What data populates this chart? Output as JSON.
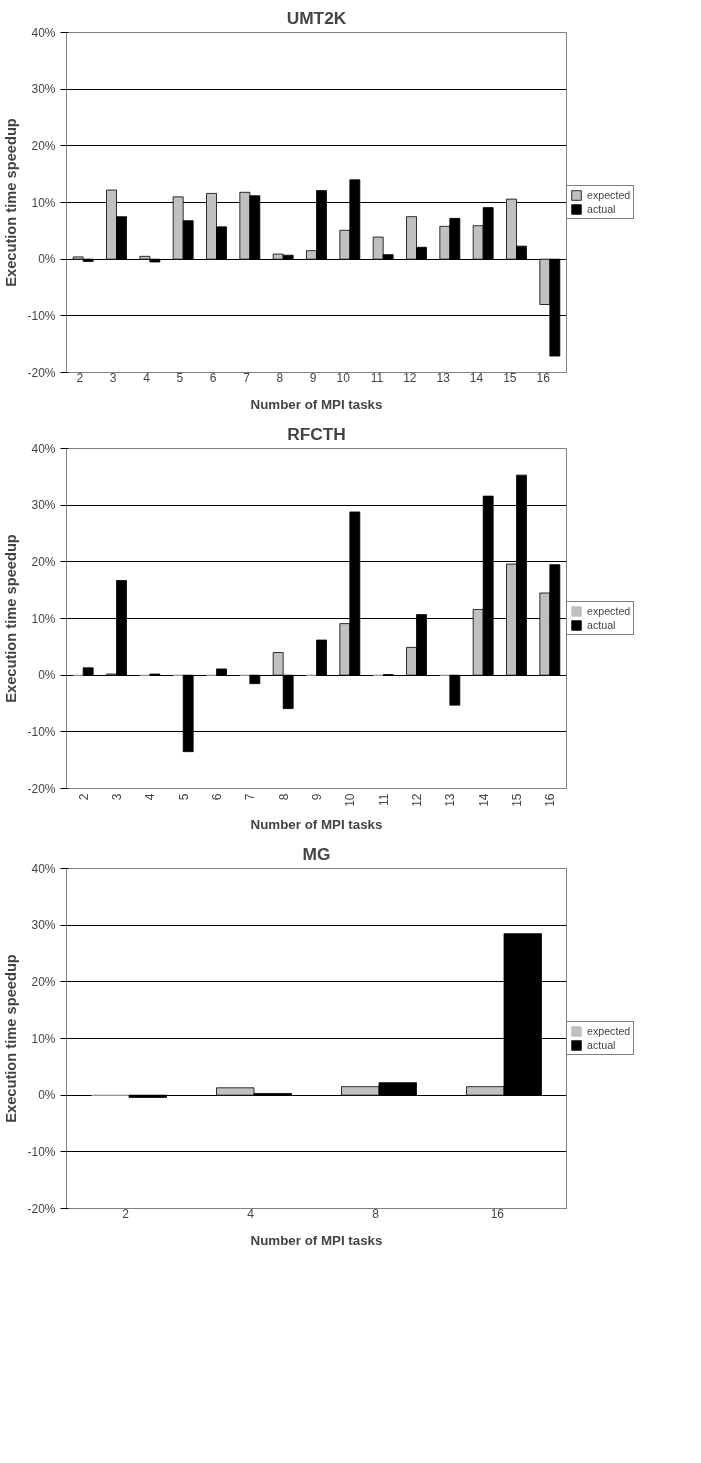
{
  "chart_data": [
    {
      "type": "bar",
      "title": "UMT2K",
      "xlabel": "Number of MPI tasks",
      "ylabel": "Execution time speedup",
      "categories": [
        "2",
        "3",
        "4",
        "5",
        "6",
        "7",
        "8",
        "9",
        "10",
        "11",
        "12",
        "13",
        "14",
        "15",
        "16"
      ],
      "series": [
        {
          "name": "expected",
          "color": "#c0c0c0",
          "values": [
            0.4,
            12.2,
            0.5,
            11.0,
            11.6,
            11.8,
            0.9,
            1.5,
            5.1,
            3.9,
            7.5,
            5.8,
            5.9,
            10.6,
            -8.0
          ]
        },
        {
          "name": "actual",
          "color": "#000000",
          "values": [
            -0.4,
            7.5,
            -0.5,
            6.8,
            5.7,
            11.2,
            0.7,
            12.1,
            14.0,
            0.8,
            2.1,
            7.2,
            9.1,
            2.3,
            -17.1
          ]
        }
      ],
      "ylim": [
        -20,
        40
      ],
      "yticks": [
        {
          "value": -20,
          "label": "-20%"
        },
        {
          "value": -10,
          "label": "-10%"
        },
        {
          "value": 0,
          "label": "0%"
        },
        {
          "value": 10,
          "label": "10%"
        },
        {
          "value": 20,
          "label": "20%"
        },
        {
          "value": 30,
          "label": "30%"
        },
        {
          "value": 40,
          "label": "40%"
        }
      ],
      "grid": "y",
      "legend": "right"
    },
    {
      "type": "bar",
      "title": "RFCTH",
      "xlabel": "Number of MPI tasks",
      "ylabel": "Execution time speedup",
      "categories": [
        "2",
        "3",
        "4",
        "5",
        "6",
        "7",
        "8",
        "9",
        "10",
        "11",
        "12",
        "13",
        "14",
        "15",
        "16"
      ],
      "series": [
        {
          "name": "expected",
          "color": "#c0c0c0",
          "values": [
            0,
            0.2,
            0,
            0,
            0,
            0,
            4.0,
            0,
            9.1,
            0,
            4.9,
            0,
            11.6,
            19.6,
            14.5
          ]
        },
        {
          "name": "actual",
          "color": "#000000",
          "values": [
            1.3,
            16.7,
            0.2,
            -13.5,
            1.1,
            -1.5,
            -5.9,
            6.2,
            28.8,
            0.1,
            10.7,
            -5.3,
            31.6,
            35.3,
            19.5
          ]
        }
      ],
      "ylim": [
        -20,
        40
      ],
      "yticks": [
        {
          "value": -20,
          "label": "-20%"
        },
        {
          "value": -10,
          "label": "-10%"
        },
        {
          "value": 0,
          "label": "0%"
        },
        {
          "value": 10,
          "label": "10%"
        },
        {
          "value": 20,
          "label": "20%"
        },
        {
          "value": 30,
          "label": "30%"
        },
        {
          "value": 40,
          "label": "40%"
        }
      ],
      "grid": "y",
      "legend": "right"
    },
    {
      "type": "bar",
      "title": "MG",
      "xlabel": "Number of MPI tasks",
      "ylabel": "Execution time speedup",
      "categories": [
        "2",
        "4",
        "8",
        "16"
      ],
      "series": [
        {
          "name": "expected",
          "color": "#c0c0c0",
          "values": [
            0,
            1.3,
            1.5,
            1.5
          ]
        },
        {
          "name": "actual",
          "color": "#000000",
          "values": [
            -0.4,
            0.3,
            2.2,
            28.5
          ]
        }
      ],
      "ylim": [
        -20,
        40
      ],
      "yticks": [
        {
          "value": -20,
          "label": "-20%"
        },
        {
          "value": -10,
          "label": "-10%"
        },
        {
          "value": 0,
          "label": "0%"
        },
        {
          "value": 10,
          "label": "10%"
        },
        {
          "value": 20,
          "label": "20%"
        },
        {
          "value": 30,
          "label": "30%"
        },
        {
          "value": 40,
          "label": "40%"
        }
      ],
      "grid": "y",
      "legend": "right"
    }
  ]
}
